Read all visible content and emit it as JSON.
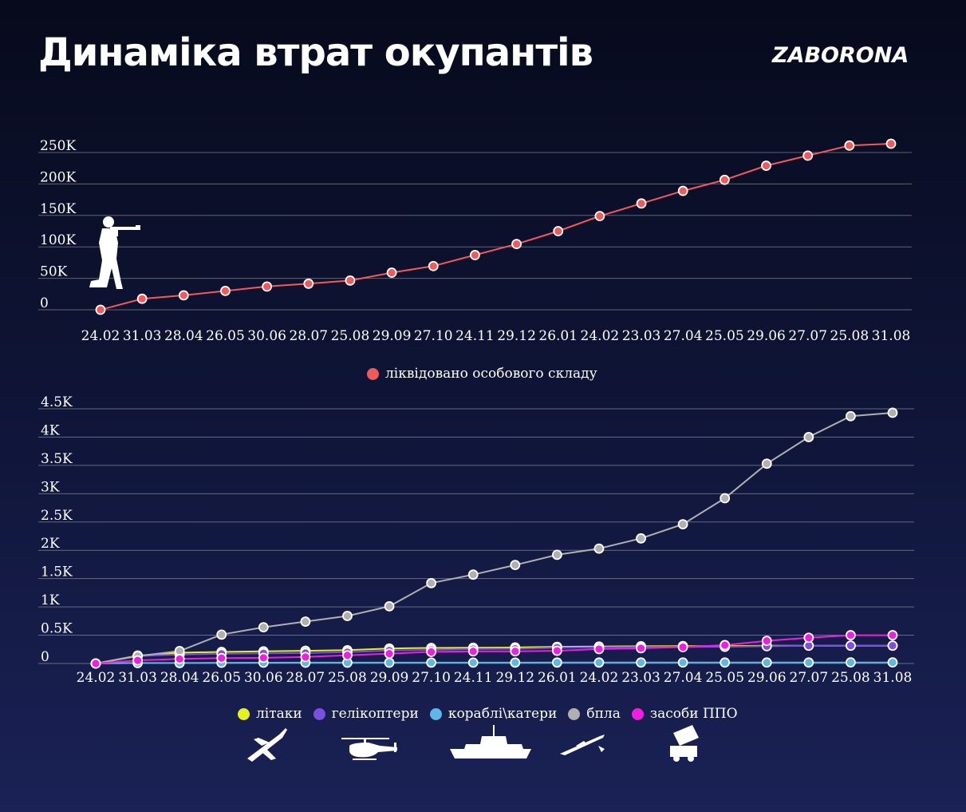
{
  "header": {
    "title": "Динаміка втрат окупантів",
    "brand": "ZABORONA"
  },
  "icons": {
    "chart1": [
      "soldier-icon"
    ],
    "chart2": [
      "plane-icon",
      "helicopter-icon",
      "ship-icon",
      "drone-icon",
      "air-defense-icon"
    ]
  },
  "chart_data": [
    {
      "type": "line",
      "categories": [
        "24.02",
        "31.03",
        "28.04",
        "26.05",
        "30.06",
        "28.07",
        "25.08",
        "29.09",
        "27.10",
        "24.11",
        "29.12",
        "26.01",
        "24.02",
        "23.03",
        "27.04",
        "25.05",
        "29.06",
        "27.07",
        "25.08",
        "31.08"
      ],
      "ylim": [
        0,
        250000
      ],
      "yticks": [
        0,
        50000,
        100000,
        150000,
        200000,
        250000
      ],
      "ytick_labels": [
        "0",
        "50K",
        "100K",
        "150K",
        "200K",
        "250K"
      ],
      "grid": true,
      "legend_position": "bottom-center",
      "series": [
        {
          "name": "ліквідовано особового складу",
          "color": "#f25a5a",
          "values": [
            0,
            17500,
            23000,
            30000,
            37000,
            41500,
            46500,
            59000,
            69500,
            87000,
            104500,
            125000,
            149000,
            169000,
            189000,
            206500,
            229000,
            245000,
            261000,
            264000
          ]
        }
      ]
    },
    {
      "type": "line",
      "categories": [
        "24.02",
        "31.03",
        "28.04",
        "26.05",
        "30.06",
        "28.07",
        "25.08",
        "29.09",
        "27.10",
        "24.11",
        "29.12",
        "26.01",
        "24.02",
        "23.03",
        "27.04",
        "25.05",
        "29.06",
        "27.07",
        "25.08",
        "31.08"
      ],
      "ylim": [
        0,
        4500
      ],
      "yticks": [
        0,
        500,
        1000,
        1500,
        2000,
        2500,
        3000,
        3500,
        4000,
        4500
      ],
      "ytick_labels": [
        "0",
        "0.5K",
        "1K",
        "1.5K",
        "2K",
        "2.5K",
        "3K",
        "3.5K",
        "4K",
        "4.5K"
      ],
      "grid": true,
      "legend_position": "bottom-center",
      "series": [
        {
          "name": "літаки",
          "color": "#e6f21a",
          "values": [
            0,
            140,
            190,
            205,
            215,
            225,
            235,
            265,
            275,
            278,
            283,
            295,
            300,
            305,
            308,
            308,
            313,
            315,
            315,
            315
          ]
        },
        {
          "name": "гелікоптери",
          "color": "#7b4fe0",
          "values": [
            0,
            130,
            160,
            172,
            180,
            185,
            200,
            230,
            240,
            255,
            260,
            280,
            286,
            290,
            295,
            295,
            305,
            315,
            316,
            316
          ]
        },
        {
          "name": "кораблі\\катери",
          "color": "#5db8e8",
          "values": [
            0,
            8,
            8,
            13,
            14,
            15,
            15,
            15,
            16,
            16,
            16,
            17,
            17,
            18,
            18,
            18,
            18,
            18,
            19,
            19
          ]
        },
        {
          "name": "бпла",
          "color": "#b0b0b0",
          "values": [
            0,
            130,
            220,
            510,
            640,
            740,
            840,
            1010,
            1420,
            1570,
            1740,
            1920,
            2030,
            2210,
            2460,
            2920,
            3530,
            4000,
            4370,
            4430
          ]
        },
        {
          "name": "засоби ППО",
          "color": "#f01ee0",
          "values": [
            0,
            55,
            80,
            95,
            100,
            115,
            145,
            175,
            205,
            215,
            215,
            225,
            255,
            270,
            290,
            325,
            400,
            455,
            500,
            500
          ]
        }
      ]
    }
  ]
}
